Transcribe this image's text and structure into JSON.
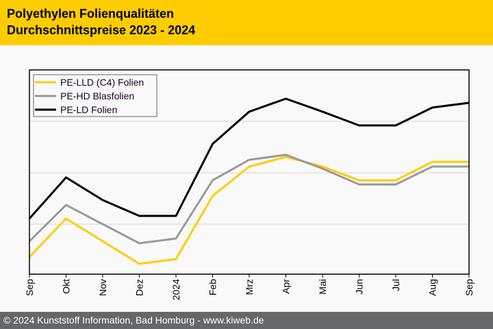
{
  "header": {
    "title_line1": "Polyethylen Folienqualitäten",
    "title_line2": "Durchschnittspreise 2023 - 2024"
  },
  "footer": {
    "text": "© 2024 Kunststoff Information, Bad Homburg - www.kiweb.de"
  },
  "chart_data": {
    "type": "line",
    "title": "Polyethylen Folienqualitäten Durchschnittspreise 2023 - 2024",
    "xlabel": "",
    "ylabel": "",
    "categories": [
      "Sep",
      "Okt",
      "Nov",
      "Dez",
      "2024",
      "Feb",
      "Mrz",
      "Apr",
      "Mai",
      "Jun",
      "Jul",
      "Aug",
      "Sep"
    ],
    "ylim": [
      0,
      100
    ],
    "yticks_note": "no y tick labels shown; values are relative",
    "grid": true,
    "legend_position": "top-left",
    "series": [
      {
        "name": "PE-LLD (C4) Folien",
        "color": "#ffcc00",
        "values": [
          9,
          27.7,
          16.7,
          5.7,
          8,
          38.7,
          53,
          57.7,
          53,
          46.3,
          46.3,
          55.3,
          55.3
        ]
      },
      {
        "name": "PE-HD Blasfolien",
        "color": "#999999",
        "values": [
          16.7,
          34.3,
          25,
          15.7,
          18,
          46.3,
          56.3,
          58.7,
          52,
          44.3,
          44.3,
          53,
          53
        ]
      },
      {
        "name": "PE-LD Folien",
        "color": "#000000",
        "values": [
          27.7,
          47.7,
          36.7,
          29,
          29,
          64,
          79.7,
          86,
          79.7,
          73,
          73,
          81.7,
          84
        ]
      }
    ]
  }
}
